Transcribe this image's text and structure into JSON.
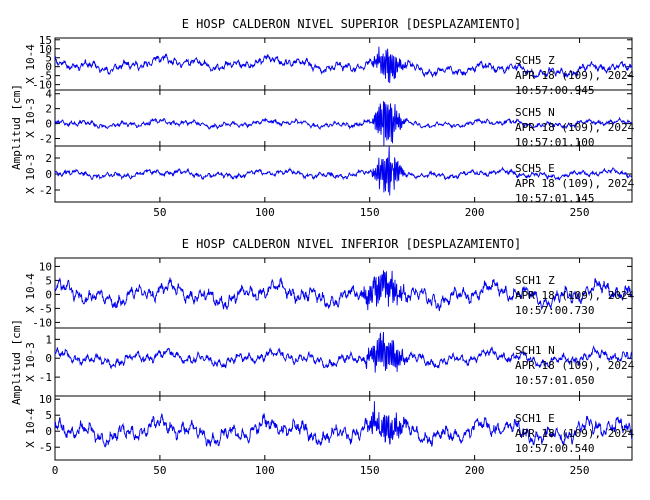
{
  "chart_data": [
    {
      "type": "line",
      "title": "E HOSP CALDERON NIVEL SUPERIOR [DESPLAZAMIENTO]",
      "ylabel": "Amplitud [cm]",
      "xlim": [
        0,
        275
      ],
      "x_ticks": [
        50,
        100,
        150,
        200,
        250
      ],
      "panels": [
        {
          "scale_label": "X 10-4",
          "ylim": [
            -13,
            16
          ],
          "y_ticks": [
            15,
            10,
            5,
            0,
            -5,
            -10
          ],
          "y_tick_labels": [
            "15",
            "10",
            "5",
            "0",
            "-5",
            "-10"
          ],
          "annotation": [
            "SCH5   Z",
            "APR 18 (109), 2024",
            "10:57:00.945"
          ],
          "base_amplitude": 3.2,
          "burst": [
            155,
            162,
            2.0
          ],
          "offset": 2.0,
          "seed": 11
        },
        {
          "scale_label": "X 10-3",
          "ylim": [
            -3,
            4.5
          ],
          "y_ticks": [
            4,
            2,
            0,
            -2
          ],
          "y_tick_labels": [
            "4",
            "2",
            "0",
            "-2"
          ],
          "annotation": [
            "SCH5   N",
            "APR 18 (109), 2024",
            "10:57:01.100"
          ],
          "base_amplitude": 0.45,
          "burst": [
            155,
            162,
            3.0
          ],
          "offset": 0,
          "seed": 23
        },
        {
          "scale_label": "X 10-3",
          "ylim": [
            -3.5,
            3.5
          ],
          "y_ticks": [
            2,
            0,
            -2
          ],
          "y_tick_labels": [
            "2",
            "0",
            "-2"
          ],
          "annotation": [
            "SCH5   E",
            "APR 18 (109), 2024",
            "10:57:01.145"
          ],
          "base_amplitude": 0.45,
          "burst": [
            155,
            162,
            2.7
          ],
          "offset": 0,
          "seed": 37
        }
      ]
    },
    {
      "type": "line",
      "title": "E HOSP CALDERON NIVEL INFERIOR [DESPLAZAMIENTO]",
      "ylabel": "Amplitud [cm]",
      "xlim": [
        0,
        275
      ],
      "x_ticks": [
        0,
        50,
        100,
        150,
        200,
        250
      ],
      "panels": [
        {
          "scale_label": "X 10-4",
          "ylim": [
            -12,
            13
          ],
          "y_ticks": [
            10,
            5,
            0,
            -5,
            -10
          ],
          "y_tick_labels": [
            "10",
            "5",
            "0",
            "-5",
            "-10"
          ],
          "annotation": [
            "SCH1   Z",
            "APR 18 (109), 2024",
            "10:57:00.730"
          ],
          "base_amplitude": 3.5,
          "burst": [
            150,
            162,
            1.4
          ],
          "offset": 0,
          "seed": 41
        },
        {
          "scale_label": "X 10-3",
          "ylim": [
            -2,
            1.6
          ],
          "y_ticks": [
            1,
            0,
            -1
          ],
          "y_tick_labels": [
            "1",
            "0",
            "-1"
          ],
          "annotation": [
            "SCH1   N",
            "APR 18 (109), 2024",
            "10:57:01.050"
          ],
          "base_amplitude": 0.35,
          "burst": [
            152,
            162,
            1.8
          ],
          "offset": 0,
          "seed": 53
        },
        {
          "scale_label": "X 10-4",
          "ylim": [
            -9,
            11
          ],
          "y_ticks": [
            10,
            5,
            0,
            -5
          ],
          "y_tick_labels": [
            "10",
            "5",
            "0",
            "-5"
          ],
          "annotation": [
            "SCH1   E",
            "APR 18 (109), 2024",
            "10:57:00.540"
          ],
          "base_amplitude": 3.2,
          "burst": [
            152,
            162,
            1.6
          ],
          "offset": 0,
          "seed": 67
        }
      ]
    }
  ]
}
